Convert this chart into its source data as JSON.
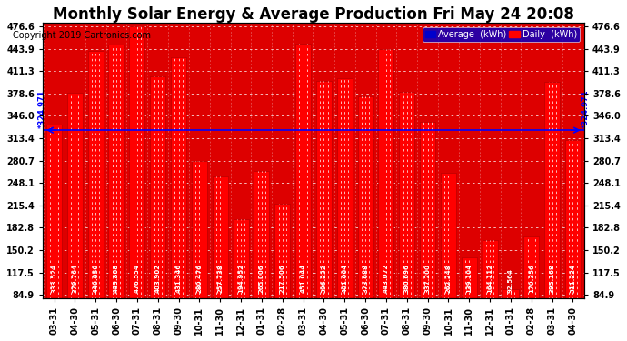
{
  "title": "Monthly Solar Energy & Average Production Fri May 24 20:08",
  "copyright": "Copyright 2019 Cartronics.com",
  "average_value": 324.971,
  "categories": [
    "03-31",
    "04-30",
    "05-31",
    "06-30",
    "07-31",
    "08-31",
    "09-30",
    "10-31",
    "11-30",
    "12-31",
    "01-31",
    "02-28",
    "03-31",
    "04-30",
    "05-31",
    "06-30",
    "07-31",
    "08-31",
    "09-30",
    "10-31",
    "11-30",
    "12-31",
    "01-31",
    "02-28",
    "03-31",
    "04-30"
  ],
  "values": [
    333.524,
    379.764,
    440.85,
    449.868,
    476.554,
    403.902,
    431.346,
    280.476,
    257.738,
    194.952,
    265.006,
    217.506,
    451.044,
    396.232,
    401.064,
    373.688,
    443.072,
    380.696,
    337.2,
    262.248,
    139.104,
    164.112,
    92.564,
    170.356,
    395.168,
    311.224
  ],
  "bar_color": "#FF0000",
  "average_line_color": "#0000FF",
  "grid_color": "#FFFFFF",
  "figure_bg_color": "#FFFFFF",
  "plot_bg_color": "#DD0000",
  "ytick_values": [
    84.9,
    117.5,
    150.2,
    182.8,
    215.4,
    248.1,
    280.7,
    313.4,
    346.0,
    378.6,
    411.3,
    443.9,
    476.6
  ],
  "legend_avg_color": "#0000CC",
  "legend_daily_color": "#FF0000",
  "title_fontsize": 12,
  "copyright_fontsize": 7,
  "tick_fontsize": 7,
  "value_fontsize": 5,
  "bar_width": 0.75
}
